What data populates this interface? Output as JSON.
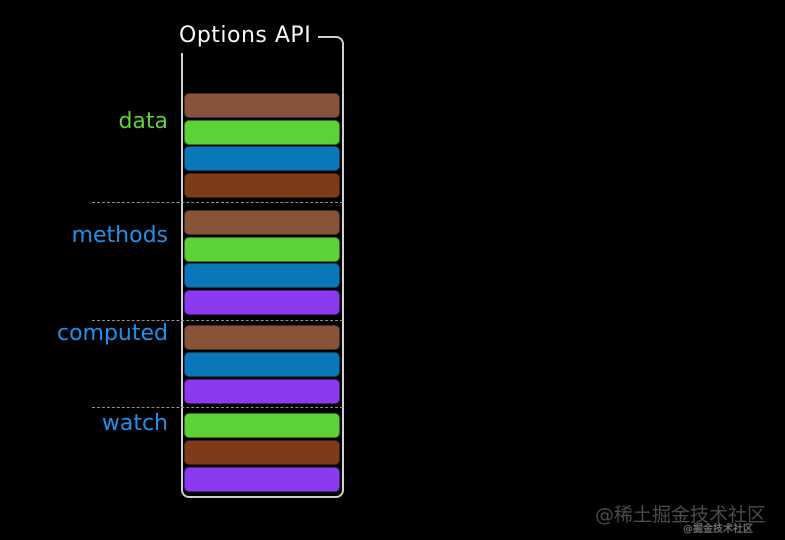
{
  "title": "Options API",
  "colors": {
    "background": "#000000",
    "title_text": "#f8f8f8",
    "bracket_border": "#d0d0d0",
    "separator": "#8f8f8f",
    "label_green": "#5dd236",
    "label_blue": "#2090ea",
    "bars": {
      "brown": "#875339",
      "green": "#5dd236",
      "blue": "#0a78b8",
      "rust": "#7d3b19",
      "purple": "#8c3af0"
    }
  },
  "sections": [
    {
      "label": "data",
      "label_color": "green",
      "bars": [
        "brown",
        "green",
        "blue",
        "rust"
      ]
    },
    {
      "label": "methods",
      "label_color": "blue",
      "bars": [
        "brown",
        "green",
        "blue",
        "purple"
      ]
    },
    {
      "label": "computed",
      "label_color": "blue",
      "bars": [
        "brown",
        "blue",
        "purple"
      ]
    },
    {
      "label": "watch",
      "label_color": "blue",
      "bars": [
        "green",
        "rust",
        "purple"
      ]
    }
  ],
  "watermark": {
    "primary": "@稀土掘金技术社区",
    "secondary": "@掘金技术社区"
  }
}
